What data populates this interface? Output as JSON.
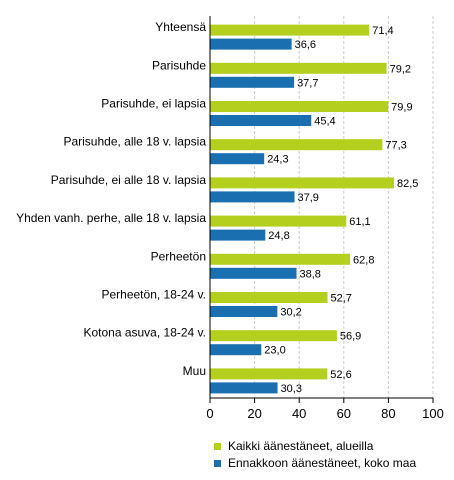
{
  "chart_data": {
    "type": "bar",
    "orientation": "horizontal",
    "categories": [
      "Yhteensä",
      "Parisuhde",
      "Parisuhde, ei lapsia",
      "Parisuhde, alle 18 v. lapsia",
      "Parisuhde, ei alle 18 v. lapsia",
      "Yhden vanh. perhe, alle 18 v. lapsia",
      "Perheetön",
      "Perheetön, 18-24 v.",
      "Kotona asuva, 18-24 v.",
      "Muu"
    ],
    "series": [
      {
        "name": "Kaikki äänestäneet, alueilla",
        "color": "#b5cf1f",
        "values": [
          71.4,
          79.2,
          79.9,
          77.3,
          82.5,
          61.1,
          62.8,
          52.7,
          56.9,
          52.6
        ],
        "labels": [
          "71,4",
          "79,2",
          "79,9",
          "77,3",
          "82,5",
          "61,1",
          "62,8",
          "52,7",
          "56,9",
          "52,6"
        ]
      },
      {
        "name": "Ennakkoon äänestäneet, koko maa",
        "color": "#1a6fb0",
        "values": [
          36.6,
          37.7,
          45.4,
          24.3,
          37.9,
          24.8,
          38.8,
          30.2,
          23.0,
          30.3
        ],
        "labels": [
          "36,6",
          "37,7",
          "45,4",
          "24,3",
          "37,9",
          "24,8",
          "38,8",
          "30,2",
          "23,0",
          "30,3"
        ]
      }
    ],
    "xlim": [
      0,
      100
    ],
    "xticks": [
      "0",
      "20",
      "40",
      "60",
      "80",
      "100"
    ],
    "grid": true,
    "legend_position": "bottom"
  }
}
